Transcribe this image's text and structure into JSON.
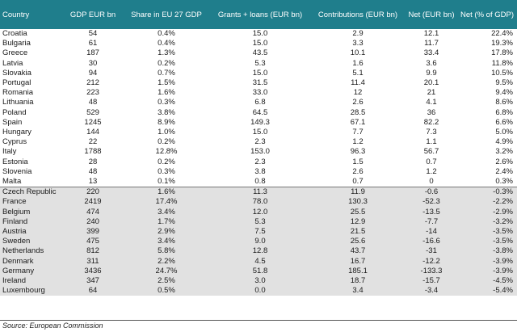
{
  "headers": [
    "Country",
    "GDP EUR bn",
    "Share in EU 27 GDP",
    "Grants + loans (EUR bn)",
    "Contributions (EUR bn)",
    "Net (EUR bn)",
    "Net (% of GDP)"
  ],
  "rows": [
    {
      "country": "Croatia",
      "gdp": "54",
      "share": "0.4%",
      "grants": "15.0",
      "contrib": "2.9",
      "net": "12.1",
      "netpct": "22.4%"
    },
    {
      "country": "Bulgaria",
      "gdp": "61",
      "share": "0.4%",
      "grants": "15.0",
      "contrib": "3.3",
      "net": "11.7",
      "netpct": "19.3%"
    },
    {
      "country": "Greece",
      "gdp": "187",
      "share": "1.3%",
      "grants": "43.5",
      "contrib": "10.1",
      "net": "33.4",
      "netpct": "17.8%"
    },
    {
      "country": "Latvia",
      "gdp": "30",
      "share": "0.2%",
      "grants": "5.3",
      "contrib": "1.6",
      "net": "3.6",
      "netpct": "11.8%"
    },
    {
      "country": "Slovakia",
      "gdp": "94",
      "share": "0.7%",
      "grants": "15.0",
      "contrib": "5.1",
      "net": "9.9",
      "netpct": "10.5%"
    },
    {
      "country": "Portugal",
      "gdp": "212",
      "share": "1.5%",
      "grants": "31.5",
      "contrib": "11.4",
      "net": "20.1",
      "netpct": "9.5%"
    },
    {
      "country": "Romania",
      "gdp": "223",
      "share": "1.6%",
      "grants": "33.0",
      "contrib": "12",
      "net": "21",
      "netpct": "9.4%"
    },
    {
      "country": "Lithuania",
      "gdp": "48",
      "share": "0.3%",
      "grants": "6.8",
      "contrib": "2.6",
      "net": "4.1",
      "netpct": "8.6%"
    },
    {
      "country": "Poland",
      "gdp": "529",
      "share": "3.8%",
      "grants": "64.5",
      "contrib": "28.5",
      "net": "36",
      "netpct": "6.8%"
    },
    {
      "country": "Spain",
      "gdp": "1245",
      "share": "8.9%",
      "grants": "149.3",
      "contrib": "67.1",
      "net": "82.2",
      "netpct": "6.6%"
    },
    {
      "country": "Hungary",
      "gdp": "144",
      "share": "1.0%",
      "grants": "15.0",
      "contrib": "7.7",
      "net": "7.3",
      "netpct": "5.0%"
    },
    {
      "country": "Cyprus",
      "gdp": "22",
      "share": "0.2%",
      "grants": "2.3",
      "contrib": "1.2",
      "net": "1.1",
      "netpct": "4.9%"
    },
    {
      "country": "Italy",
      "gdp": "1788",
      "share": "12.8%",
      "grants": "153.0",
      "contrib": "96.3",
      "net": "56.7",
      "netpct": "3.2%"
    },
    {
      "country": "Estonia",
      "gdp": "28",
      "share": "0.2%",
      "grants": "2.3",
      "contrib": "1.5",
      "net": "0.7",
      "netpct": "2.6%"
    },
    {
      "country": "Slovenia",
      "gdp": "48",
      "share": "0.3%",
      "grants": "3.8",
      "contrib": "2.6",
      "net": "1.2",
      "netpct": "2.4%"
    },
    {
      "country": "Malta",
      "gdp": "13",
      "share": "0.1%",
      "grants": "0.8",
      "contrib": "0.7",
      "net": "0",
      "netpct": "0.3%"
    },
    {
      "country": "Czech Republic",
      "gdp": "220",
      "share": "1.6%",
      "grants": "11.3",
      "contrib": "11.9",
      "net": "-0.6",
      "netpct": "-0.3%"
    },
    {
      "country": "France",
      "gdp": "2419",
      "share": "17.4%",
      "grants": "78.0",
      "contrib": "130.3",
      "net": "-52.3",
      "netpct": "-2.2%"
    },
    {
      "country": "Belgium",
      "gdp": "474",
      "share": "3.4%",
      "grants": "12.0",
      "contrib": "25.5",
      "net": "-13.5",
      "netpct": "-2.9%"
    },
    {
      "country": "Finland",
      "gdp": "240",
      "share": "1.7%",
      "grants": "5.3",
      "contrib": "12.9",
      "net": "-7.7",
      "netpct": "-3.2%"
    },
    {
      "country": "Austria",
      "gdp": "399",
      "share": "2.9%",
      "grants": "7.5",
      "contrib": "21.5",
      "net": "-14",
      "netpct": "-3.5%"
    },
    {
      "country": "Sweden",
      "gdp": "475",
      "share": "3.4%",
      "grants": "9.0",
      "contrib": "25.6",
      "net": "-16.6",
      "netpct": "-3.5%"
    },
    {
      "country": "Netherlands",
      "gdp": "812",
      "share": "5.8%",
      "grants": "12.8",
      "contrib": "43.7",
      "net": "-31",
      "netpct": "-3.8%"
    },
    {
      "country": "Denmark",
      "gdp": "311",
      "share": "2.2%",
      "grants": "4.5",
      "contrib": "16.7",
      "net": "-12.2",
      "netpct": "-3.9%"
    },
    {
      "country": "Germany",
      "gdp": "3436",
      "share": "24.7%",
      "grants": "51.8",
      "contrib": "185.1",
      "net": "-133.3",
      "netpct": "-3.9%"
    },
    {
      "country": "Ireland",
      "gdp": "347",
      "share": "2.5%",
      "grants": "3.0",
      "contrib": "18.7",
      "net": "-15.7",
      "netpct": "-4.5%"
    },
    {
      "country": "Luxembourg",
      "gdp": "64",
      "share": "0.5%",
      "grants": "0.0",
      "contrib": "3.4",
      "net": "-3.4",
      "netpct": "-5.4%"
    }
  ],
  "source": "Source: European Commission",
  "colors": {
    "header_bg": "#1f7e8c",
    "negative_row_bg": "#e1e1e1"
  }
}
